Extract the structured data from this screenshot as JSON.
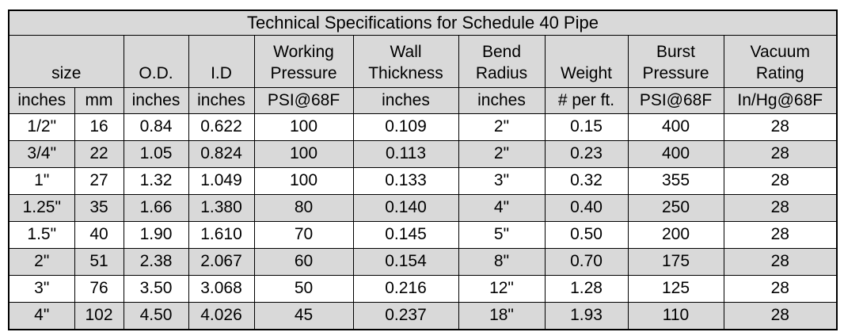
{
  "table": {
    "title": "Technical Specifications for Schedule 40 Pipe",
    "column_headers": [
      {
        "lines": [
          "size"
        ],
        "span": 2
      },
      {
        "lines": [
          "O.D."
        ],
        "span": 1
      },
      {
        "lines": [
          "I.D"
        ],
        "span": 1
      },
      {
        "lines": [
          "Working",
          "Pressure"
        ],
        "span": 1
      },
      {
        "lines": [
          "Wall",
          "Thickness"
        ],
        "span": 1
      },
      {
        "lines": [
          "Bend",
          "Radius"
        ],
        "span": 1
      },
      {
        "lines": [
          "Weight"
        ],
        "span": 1
      },
      {
        "lines": [
          "Burst",
          "Pressure"
        ],
        "span": 1
      },
      {
        "lines": [
          "Vacuum",
          "Rating"
        ],
        "span": 1
      }
    ],
    "units": [
      "inches",
      "mm",
      "inches",
      "inches",
      "PSI@68F",
      "inches",
      "inches",
      "# per ft.",
      "PSI@68F",
      "In/Hg@68F"
    ],
    "rows": [
      [
        "1/2\"",
        "16",
        "0.84",
        "0.622",
        "100",
        "0.109",
        "2\"",
        "0.15",
        "400",
        "28"
      ],
      [
        "3/4\"",
        "22",
        "1.05",
        "0.824",
        "100",
        "0.113",
        "2\"",
        "0.23",
        "400",
        "28"
      ],
      [
        "1\"",
        "27",
        "1.32",
        "1.049",
        "100",
        "0.133",
        "3\"",
        "0.32",
        "355",
        "28"
      ],
      [
        "1.25\"",
        "35",
        "1.66",
        "1.380",
        "80",
        "0.140",
        "4\"",
        "0.40",
        "250",
        "28"
      ],
      [
        "1.5\"",
        "40",
        "1.90",
        "1.610",
        "70",
        "0.145",
        "5\"",
        "0.50",
        "200",
        "28"
      ],
      [
        "2\"",
        "51",
        "2.38",
        "2.067",
        "60",
        "0.154",
        "8\"",
        "0.70",
        "175",
        "28"
      ],
      [
        "3\"",
        "76",
        "3.50",
        "3.068",
        "50",
        "0.216",
        "12\"",
        "1.28",
        "125",
        "28"
      ],
      [
        "4\"",
        "102",
        "4.50",
        "4.026",
        "45",
        "0.237",
        "18\"",
        "1.93",
        "110",
        "28"
      ]
    ],
    "colors": {
      "header_fill": "#d9d9d9",
      "alt_row_fill": "#d9d9d9",
      "row_fill": "#ffffff",
      "border": "#000000",
      "text": "#000000"
    }
  }
}
